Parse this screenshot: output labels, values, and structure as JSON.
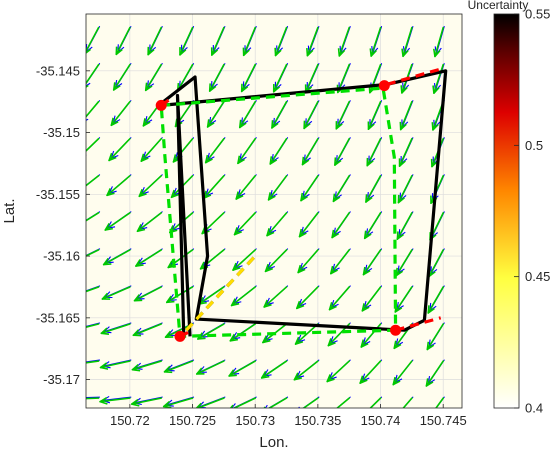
{
  "chart_data": {
    "type": "quiver",
    "xlabel": "Lon.",
    "ylabel": "Lat.",
    "xlim": [
      150.7165,
      150.7465
    ],
    "ylim": [
      -35.1723,
      -35.1404
    ],
    "xticks": [
      150.72,
      150.725,
      150.73,
      150.735,
      150.74,
      150.745
    ],
    "xtick_labels": [
      "150.72",
      "150.725",
      "150.73",
      "150.735",
      "150.74",
      "150.745"
    ],
    "yticks": [
      -35.145,
      -35.15,
      -35.155,
      -35.16,
      -35.165,
      -35.17
    ],
    "ytick_labels": [
      "-35.145",
      "-35.15",
      "-35.155",
      "-35.16",
      "-35.165",
      "-35.17"
    ],
    "grid": true,
    "colorbar": {
      "label": "Uncertainty",
      "range": [
        0.4,
        0.55
      ],
      "ticks": [
        0.4,
        0.45,
        0.5,
        0.55
      ],
      "tick_labels": [
        "0.4",
        "0.45",
        "0.5",
        "0.55"
      ],
      "colormap": "hot (reversed): white-yellow-red-black"
    },
    "vector_field": {
      "grid_lon": [
        150.7175,
        150.72,
        150.7225,
        150.725,
        150.7275,
        150.73,
        150.7325,
        150.735,
        150.7375,
        150.74,
        150.7425,
        150.745
      ],
      "grid_lat": [
        -35.1415,
        -35.1445,
        -35.1475,
        -35.1505,
        -35.1535,
        -35.1565,
        -35.1595,
        -35.1625,
        -35.1655,
        -35.1685,
        -35.1715
      ],
      "series": [
        {
          "color": "#0000ff"
        },
        {
          "color": "#00c800"
        }
      ]
    },
    "lines": [
      {
        "style": "solid",
        "color": "#000000",
        "x": [
          150.7225,
          150.7405,
          150.7452,
          150.7435,
          150.7419,
          150.7253,
          150.7262,
          150.7252,
          150.7223
        ],
        "y": [
          -35.1478,
          -35.1461,
          -35.145,
          -35.1652,
          -35.166,
          -35.1651,
          -35.16,
          -35.1455,
          -35.1478
        ]
      },
      {
        "style": "solid",
        "color": "#000000",
        "x": [
          150.7243,
          150.7238,
          150.7248
        ],
        "y": [
          -35.1665,
          -35.147,
          -35.1665
        ]
      },
      {
        "style": "dashed",
        "color": "#00e000",
        "x": [
          150.7225,
          150.7402,
          150.7411,
          150.7412,
          150.724,
          150.7228,
          150.7225
        ],
        "y": [
          -35.1478,
          -35.1464,
          -35.152,
          -35.166,
          -35.1665,
          -35.152,
          -35.1478
        ]
      },
      {
        "style": "dashed",
        "color": "#ff0000",
        "x": [
          150.7225,
          150.7232
        ],
        "y": [
          -35.1478,
          -35.1473
        ]
      },
      {
        "style": "dashed",
        "color": "#ff0000",
        "x": [
          150.7405,
          150.745
        ],
        "y": [
          -35.1461,
          -35.1448
        ]
      },
      {
        "style": "dashed",
        "color": "#ff0000",
        "x": [
          150.7412,
          150.7448
        ],
        "y": [
          -35.166,
          -35.165
        ]
      },
      {
        "style": "dashed",
        "color": "#ff0000",
        "x": [
          150.724,
          150.725
        ],
        "y": [
          -35.1665,
          -35.166
        ]
      },
      {
        "style": "dashed",
        "color": "#000000",
        "x": [
          150.7245,
          150.73
        ],
        "y": [
          -35.166,
          -35.16
        ]
      },
      {
        "style": "dashed",
        "color": "#ffdd00",
        "x": [
          150.7245,
          150.73
        ],
        "y": [
          -35.166,
          -35.16
        ]
      }
    ],
    "points": [
      {
        "x": 150.7225,
        "y": -35.1478,
        "color": "#ff0000"
      },
      {
        "x": 150.7403,
        "y": -35.1462,
        "color": "#ff0000"
      },
      {
        "x": 150.7412,
        "y": -35.166,
        "color": "#ff0000"
      },
      {
        "x": 150.724,
        "y": -35.1665,
        "color": "#ff0000"
      }
    ]
  }
}
